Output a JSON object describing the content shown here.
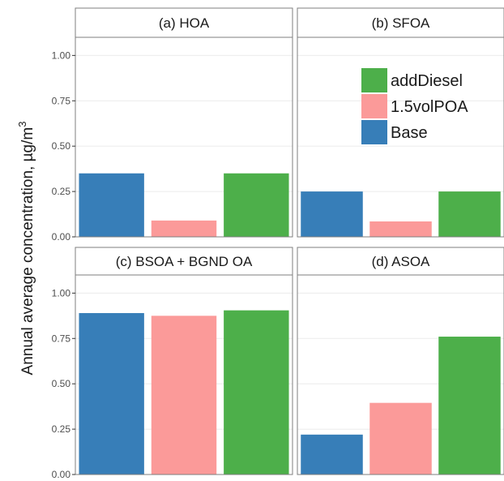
{
  "chart_data": {
    "type": "bar",
    "ylabel_main": "Annual average concentration, µg/m",
    "ylabel_sup": "3",
    "xlabel": "",
    "ylim": [
      0,
      1.1
    ],
    "y_ticks": [
      "0.00",
      "0.25",
      "0.50",
      "0.75",
      "1.00"
    ],
    "categories": [
      "Base",
      "1.5volPOA",
      "addDiesel"
    ],
    "colors": {
      "Base": "#377eb8",
      "1.5volPOA": "#fb9a99",
      "addDiesel": "#4daf4a"
    },
    "legend": {
      "position": "top-right",
      "items": [
        "addDiesel",
        "1.5volPOA",
        "Base"
      ]
    },
    "panels": [
      {
        "title": "(a) HOA",
        "values": [
          0.35,
          0.09,
          0.35
        ]
      },
      {
        "title": "(b) SFOA",
        "values": [
          0.25,
          0.085,
          0.25
        ]
      },
      {
        "title": "(c) BSOA + BGND OA",
        "values": [
          0.89,
          0.875,
          0.905
        ]
      },
      {
        "title": "(d) ASOA",
        "values": [
          0.22,
          0.395,
          0.76
        ]
      }
    ]
  }
}
